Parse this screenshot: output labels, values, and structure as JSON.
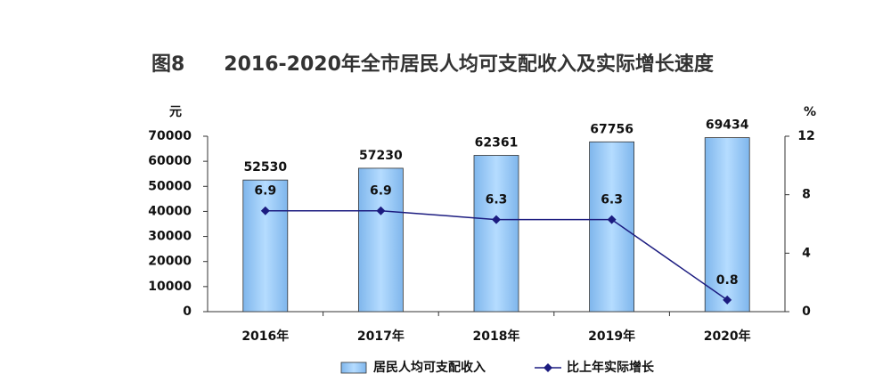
{
  "chart_data": {
    "type": "bar_line",
    "title": "图8　　2016-2020年全市居民人均可支配收入及实际增长速度",
    "y_label": "元",
    "y2_label": "%",
    "categories": [
      "2016年",
      "2017年",
      "2018年",
      "2019年",
      "2020年"
    ],
    "series": [
      {
        "name": "居民人均可支配收入",
        "type": "bar",
        "color": "#99ccff",
        "values": [
          52530,
          57230,
          62361,
          67756,
          69434
        ]
      },
      {
        "name": "比上年实际增长",
        "type": "line",
        "axis": "y2",
        "color": "#1c1c80",
        "values": [
          6.9,
          6.9,
          6.3,
          6.3,
          0.8
        ]
      }
    ],
    "ylim": [
      0,
      70000
    ],
    "yticks": [
      0,
      10000,
      20000,
      30000,
      40000,
      50000,
      60000,
      70000
    ],
    "y2lim": [
      0,
      12
    ],
    "y2ticks": [
      0,
      4,
      8,
      12
    ],
    "legend": "bottom"
  }
}
